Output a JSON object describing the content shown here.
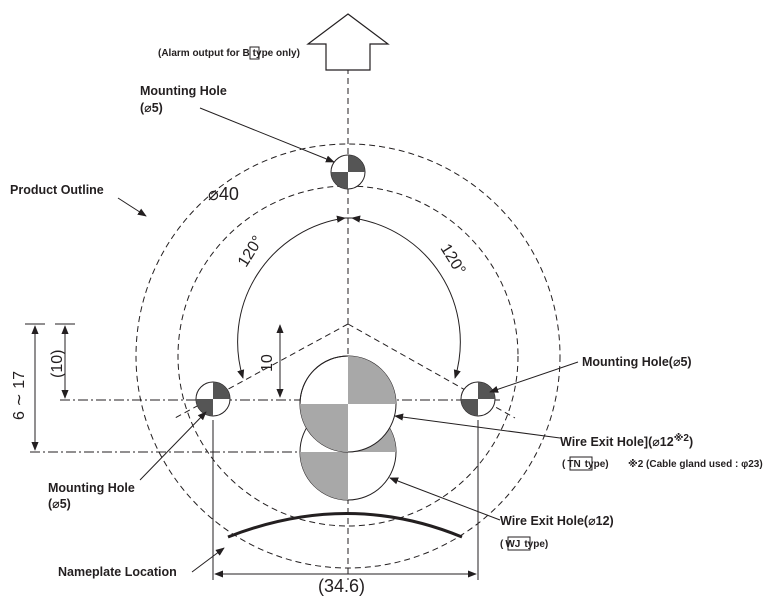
{
  "labels": {
    "alarm_prefix": "(Alarm output for ",
    "alarm_box": "B",
    "alarm_suffix": "type only)",
    "mount_top": "Mounting Hole",
    "mount_top_dia": "(⌀5)",
    "product_outline": "Product Outline",
    "dia_40": "⌀40",
    "angle_left": "120°",
    "angle_right": "120°",
    "dim_10": "10",
    "dim_10_paren": "(10)",
    "dim_6_17": "6 ∼ 17",
    "mount_right": "Mounting Hole(⌀5)",
    "mount_left": "Mounting Hole",
    "mount_left_dia": "(⌀5)",
    "wire_exit_tn": "Wire Exit Hole](⌀12",
    "wire_exit_tn_sup": "※2",
    "wire_exit_tn_close": ")",
    "tn_open": "(",
    "tn_box": "TN",
    "tn_close": "type)",
    "note2": "※2 (Cable gland used : φ23)",
    "wire_exit_wj": "Wire Exit Hole(⌀12)",
    "wj_open": "(",
    "wj_box": "WJ",
    "wj_close": "type)",
    "nameplate": "Nameplate Location",
    "dim_34_6": "(34.6)"
  },
  "colors": {
    "line": "#231f20",
    "quadrant_dark": "#555555",
    "hole_gray": "#a8a8a8"
  }
}
